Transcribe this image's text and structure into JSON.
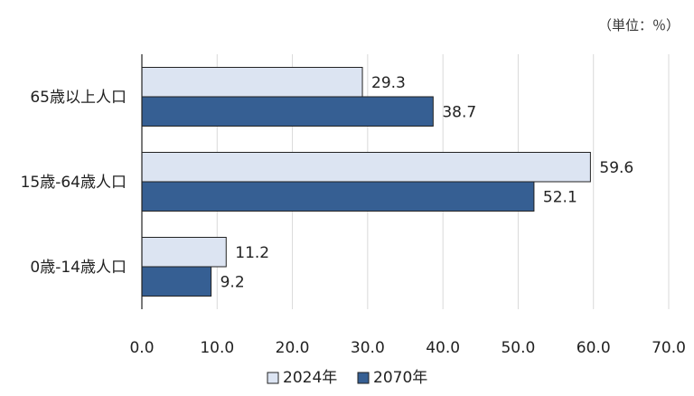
{
  "unit_note": "（単位：％）",
  "colors": {
    "series_2024": "#dce4f2",
    "series_2070": "#365f93",
    "bar_stroke": "#222222",
    "grid": "#d9d9d9",
    "axis": "#222222"
  },
  "chart_data": {
    "type": "bar",
    "orientation": "horizontal",
    "categories": [
      "65歳以上人口",
      "15歳-64歳人口",
      "0歳-14歳人口"
    ],
    "series": [
      {
        "name": "2024年",
        "values": [
          29.3,
          59.6,
          11.2
        ]
      },
      {
        "name": "2070年",
        "values": [
          38.7,
          52.1,
          9.2
        ]
      }
    ],
    "value_labels": [
      [
        "29.3",
        "59.6",
        "11.2"
      ],
      [
        "38.7",
        "52.1",
        "9.2"
      ]
    ],
    "xlim": [
      0,
      70
    ],
    "xticks": [
      0,
      10,
      20,
      30,
      40,
      50,
      60,
      70
    ],
    "xtick_labels": [
      "0.0",
      "10.0",
      "20.0",
      "30.0",
      "40.0",
      "50.0",
      "60.0",
      "70.0"
    ],
    "grid": true,
    "legend_position": "bottom"
  }
}
